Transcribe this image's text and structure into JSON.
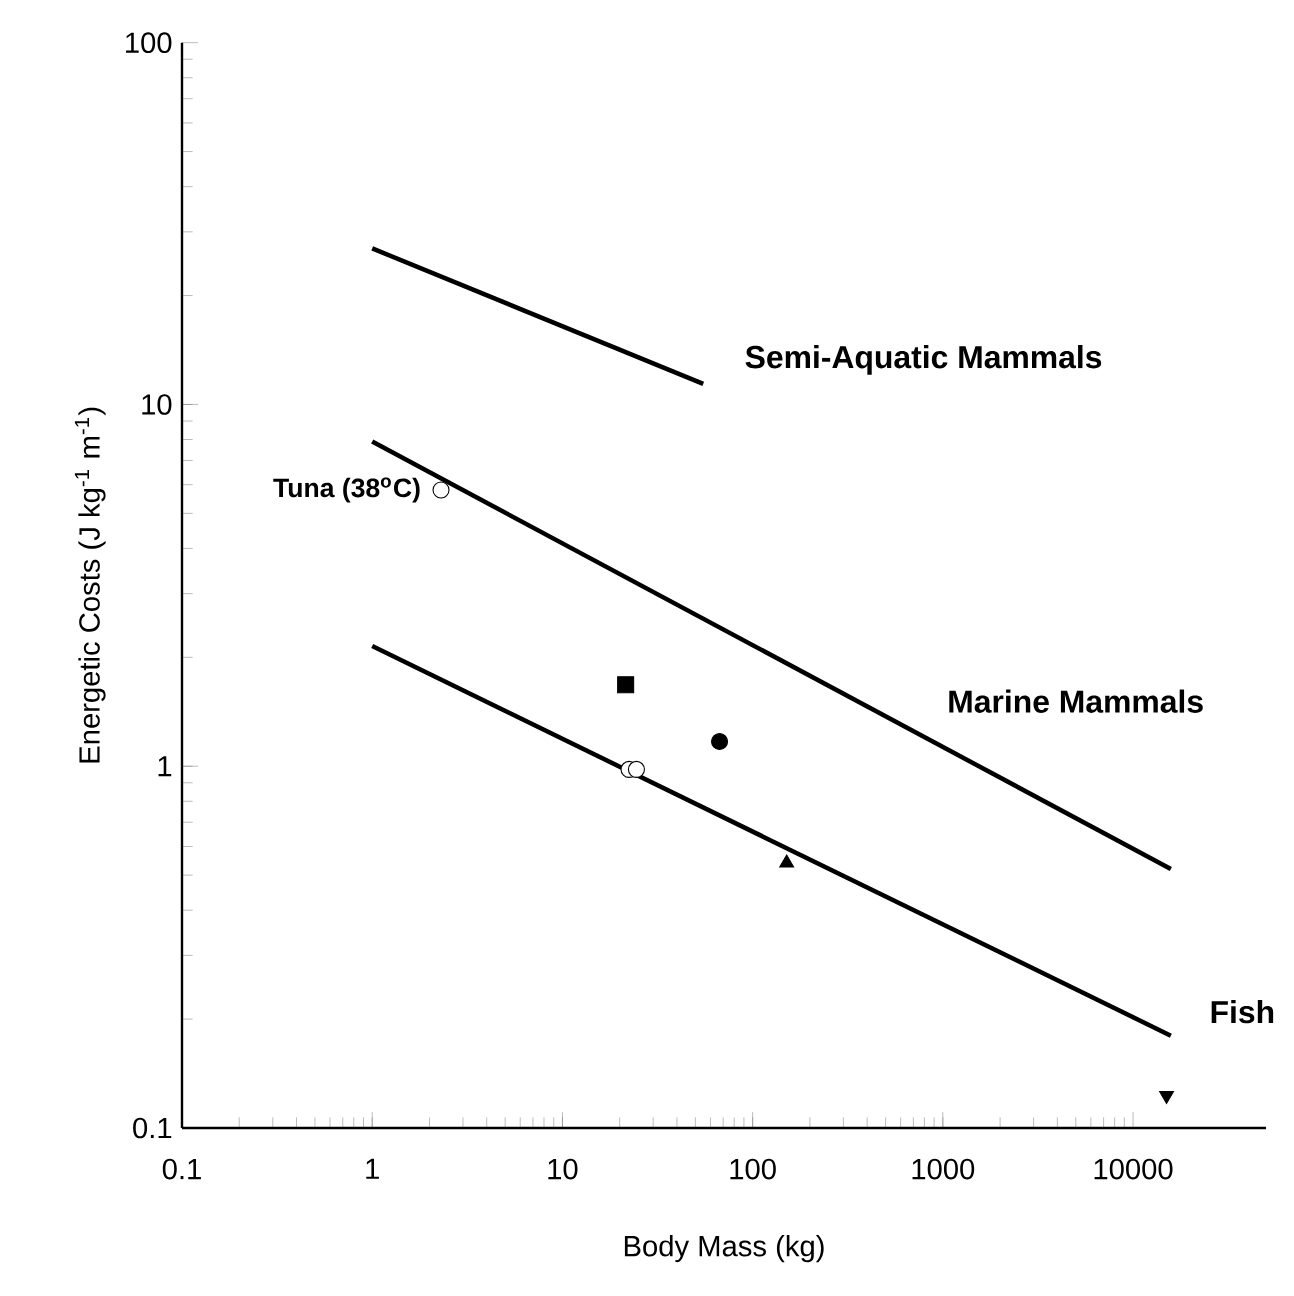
{
  "chart_data": {
    "type": "line",
    "xlabel": "Body Mass (kg)",
    "ylabel": "Energetic Costs (J kg$^{-1}$ m$^{-1}$)",
    "log": "xy",
    "xlim": [
      0.1,
      50000
    ],
    "ylim": [
      0.1,
      100
    ],
    "xticks": [
      {
        "value": 0.1,
        "label": "0.1"
      },
      {
        "value": 1,
        "label": "1"
      },
      {
        "value": 10,
        "label": "10"
      },
      {
        "value": 100,
        "label": "100"
      },
      {
        "value": 1000,
        "label": "1000"
      },
      {
        "value": 10000,
        "label": "10000"
      }
    ],
    "yticks": [
      {
        "value": 0.1,
        "label": "0.1"
      },
      {
        "value": 1,
        "label": "1"
      },
      {
        "value": 10,
        "label": "10"
      },
      {
        "value": 100,
        "label": "100"
      }
    ],
    "series": [
      {
        "name": "Semi-Aquatic Mammals",
        "type": "line",
        "color": "#000000",
        "line_style": "solid",
        "marker": "none",
        "x": [
          1,
          55
        ],
        "values": [
          27,
          11.4
        ]
      },
      {
        "name": "Marine Mammals",
        "type": "line",
        "color": "#000000",
        "line_style": "solid",
        "marker": "none",
        "x": [
          1,
          15800
        ],
        "values": [
          7.9,
          0.52
        ]
      },
      {
        "name": "Fish",
        "type": "line",
        "color": "#000000",
        "line_style": "solid",
        "marker": "none",
        "x": [
          1,
          15800
        ],
        "values": [
          2.15,
          0.18
        ]
      },
      {
        "type": "scatter",
        "color": "#000000",
        "marker": "square",
        "x": [
          21.5
        ],
        "values": [
          1.68
        ]
      },
      {
        "type": "scatter",
        "color": "#000000",
        "marker": "circle",
        "x": [
          67
        ],
        "values": [
          1.17
        ]
      },
      {
        "type": "scatter",
        "color": "#ffffff",
        "marker": "circle",
        "x": [
          22.4,
          24.5
        ],
        "values": [
          0.98,
          0.98
        ]
      },
      {
        "type": "scatter",
        "color": "#000000",
        "marker": "triangle",
        "x": [
          151
        ],
        "values": [
          0.54
        ]
      },
      {
        "type": "scatter",
        "color": "#000000",
        "marker": "triangle down",
        "x": [
          15000
        ],
        "values": [
          0.123
        ]
      },
      {
        "type": "scatter",
        "color": "#ffffff",
        "marker": "circle",
        "x": [
          2.3
        ],
        "values": [
          5.8
        ]
      }
    ],
    "annotations": [
      {
        "text": "Tuna (38$^{o}$C)",
        "x": 2.3,
        "y": 5.8
      }
    ]
  }
}
